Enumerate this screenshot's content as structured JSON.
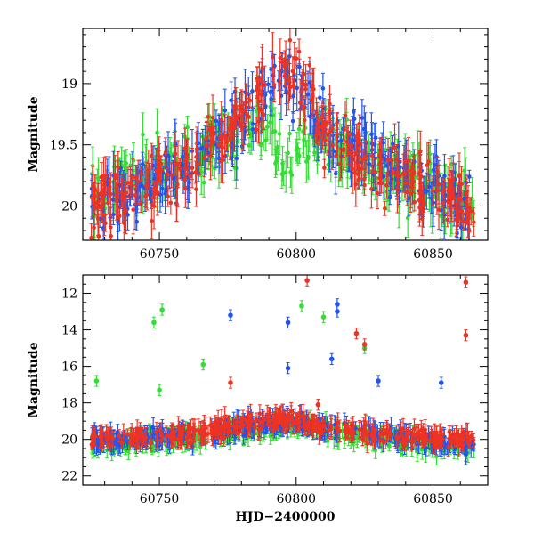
{
  "chart_data": [
    {
      "type": "scatter",
      "title": "",
      "xlabel": "",
      "ylabel": "Magnitude",
      "xlim": [
        60722,
        60870
      ],
      "ylim": [
        20.28,
        18.55
      ],
      "y_inverted": true,
      "x_ticks": [
        60750,
        60800,
        60850
      ],
      "y_ticks": [
        19,
        19.5,
        20
      ],
      "x_tick_labels": [
        "60750",
        "60800",
        "60850"
      ],
      "y_tick_labels": [
        "19",
        "19.5",
        "20"
      ],
      "grid": false,
      "legend": "none",
      "series": [
        {
          "color": "#33dd33",
          "x": [
            60725,
            60735,
            60748,
            60765,
            60782,
            60790,
            60796,
            60802,
            60812,
            60828,
            60842,
            60858,
            60865
          ],
          "y": [
            19.95,
            19.8,
            19.7,
            19.5,
            19.4,
            19.35,
            19.8,
            19.4,
            19.5,
            19.7,
            19.8,
            19.9,
            19.95
          ]
        },
        {
          "color": "#2255ee",
          "x": [
            60725,
            60735,
            60748,
            60765,
            60780,
            60790,
            60796,
            60802,
            60812,
            60828,
            60842,
            60858,
            60865
          ],
          "y": [
            19.95,
            19.9,
            19.8,
            19.6,
            19.3,
            19.05,
            18.95,
            19.05,
            19.4,
            19.6,
            19.8,
            19.95,
            19.95
          ]
        },
        {
          "color": "#ee3322",
          "x": [
            60725,
            60735,
            60748,
            60758,
            60765,
            60775,
            60785,
            60792,
            60796,
            60800,
            60806,
            60815,
            60825,
            60838,
            60850,
            60860,
            60865
          ],
          "y": [
            20.05,
            19.95,
            19.85,
            19.75,
            19.6,
            19.35,
            19.1,
            18.92,
            18.88,
            18.95,
            19.2,
            19.45,
            19.65,
            19.8,
            19.9,
            20.0,
            20.02
          ]
        }
      ]
    },
    {
      "type": "scatter",
      "title": "",
      "xlabel": "HJD−2400000",
      "ylabel": "Magnitude",
      "xlim": [
        60722,
        60870
      ],
      "ylim": [
        22.5,
        11.0
      ],
      "y_inverted": true,
      "x_ticks": [
        60750,
        60800,
        60850
      ],
      "y_ticks": [
        12,
        14,
        16,
        18,
        20,
        22
      ],
      "x_tick_labels": [
        "60750",
        "60800",
        "60850"
      ],
      "y_tick_labels": [
        "12",
        "14",
        "16",
        "18",
        "20",
        "22"
      ],
      "grid": false,
      "legend": "none",
      "series": [
        {
          "color": "#33dd33",
          "x": [
            60725,
            60735,
            60748,
            60765,
            60782,
            60796,
            60812,
            60828,
            60842,
            60858,
            60865
          ],
          "y": [
            20.3,
            20.2,
            20.1,
            19.9,
            19.5,
            19.3,
            19.6,
            19.9,
            20.2,
            20.3,
            20.4
          ]
        },
        {
          "color": "#2255ee",
          "x": [
            60725,
            60735,
            60748,
            60765,
            60780,
            60796,
            60812,
            60828,
            60842,
            60858,
            60865
          ],
          "y": [
            20.1,
            20.0,
            19.9,
            19.7,
            19.3,
            19.0,
            19.4,
            19.7,
            20.0,
            20.3,
            20.3
          ]
        },
        {
          "color": "#ee3322",
          "x": [
            60725,
            60735,
            60748,
            60758,
            60765,
            60775,
            60785,
            60796,
            60806,
            60815,
            60825,
            60838,
            60850,
            60865
          ],
          "y": [
            20.0,
            19.95,
            19.85,
            19.75,
            19.6,
            19.35,
            19.1,
            18.9,
            19.2,
            19.45,
            19.65,
            19.8,
            19.9,
            20.0
          ]
        }
      ],
      "outliers": [
        {
          "color": "#33dd33",
          "x": 60751,
          "y": 12.9
        },
        {
          "color": "#33dd33",
          "x": 60748,
          "y": 13.6
        },
        {
          "color": "#33dd33",
          "x": 60750,
          "y": 17.3
        },
        {
          "color": "#33dd33",
          "x": 60766,
          "y": 15.9
        },
        {
          "color": "#33dd33",
          "x": 60802,
          "y": 12.7
        },
        {
          "color": "#33dd33",
          "x": 60810,
          "y": 13.3
        },
        {
          "color": "#33dd33",
          "x": 60825,
          "y": 15.0
        },
        {
          "color": "#33dd33",
          "x": 60727,
          "y": 16.8
        },
        {
          "color": "#2255ee",
          "x": 60776,
          "y": 13.2
        },
        {
          "color": "#2255ee",
          "x": 60797,
          "y": 13.6
        },
        {
          "color": "#2255ee",
          "x": 60797,
          "y": 16.1
        },
        {
          "color": "#2255ee",
          "x": 60815,
          "y": 12.6
        },
        {
          "color": "#2255ee",
          "x": 60815,
          "y": 13.0
        },
        {
          "color": "#2255ee",
          "x": 60813,
          "y": 15.6
        },
        {
          "color": "#2255ee",
          "x": 60830,
          "y": 16.8
        },
        {
          "color": "#2255ee",
          "x": 60853,
          "y": 16.9
        },
        {
          "color": "#ee3322",
          "x": 60804,
          "y": 11.3
        },
        {
          "color": "#ee3322",
          "x": 60862,
          "y": 11.4
        },
        {
          "color": "#ee3322",
          "x": 60862,
          "y": 14.3
        },
        {
          "color": "#ee3322",
          "x": 60822,
          "y": 14.2
        },
        {
          "color": "#ee3322",
          "x": 60825,
          "y": 14.8
        },
        {
          "color": "#ee3322",
          "x": 60776,
          "y": 16.9
        },
        {
          "color": "#ee3322",
          "x": 60808,
          "y": 18.1
        }
      ]
    }
  ]
}
